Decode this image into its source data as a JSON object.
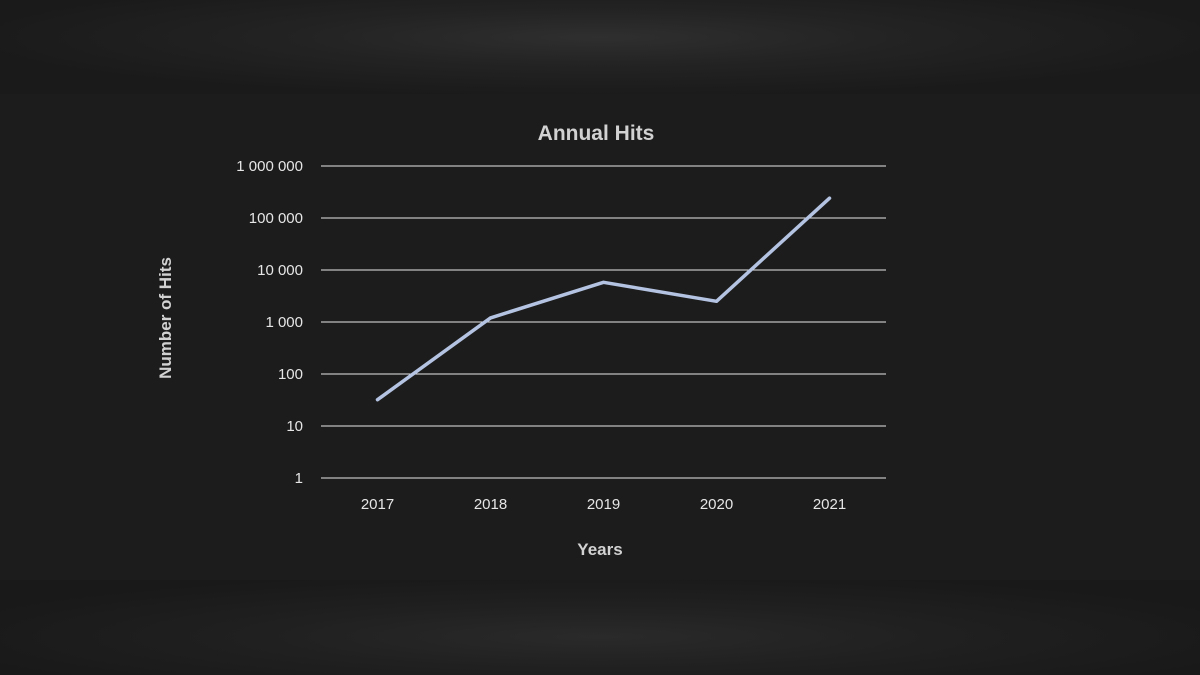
{
  "chart_data": {
    "type": "line",
    "title": "Annual Hits",
    "xlabel": "Years",
    "ylabel": "Number of Hits",
    "yscale": "log",
    "ylim": [
      1,
      1000000
    ],
    "y_ticks": [
      1,
      10,
      100,
      1000,
      10000,
      100000,
      1000000
    ],
    "y_tick_labels": [
      "1",
      "10",
      "100",
      "1 000",
      "10 000",
      "100 000",
      "1 000 000"
    ],
    "categories": [
      "2017",
      "2018",
      "2019",
      "2020",
      "2021"
    ],
    "series": [
      {
        "values": [
          32,
          1200,
          5800,
          2500,
          240000
        ],
        "color": "#b4c3e1"
      }
    ],
    "grid": true,
    "legend": "none",
    "background_color": "#1c1c1c",
    "text_color": "#d2d2d2"
  }
}
